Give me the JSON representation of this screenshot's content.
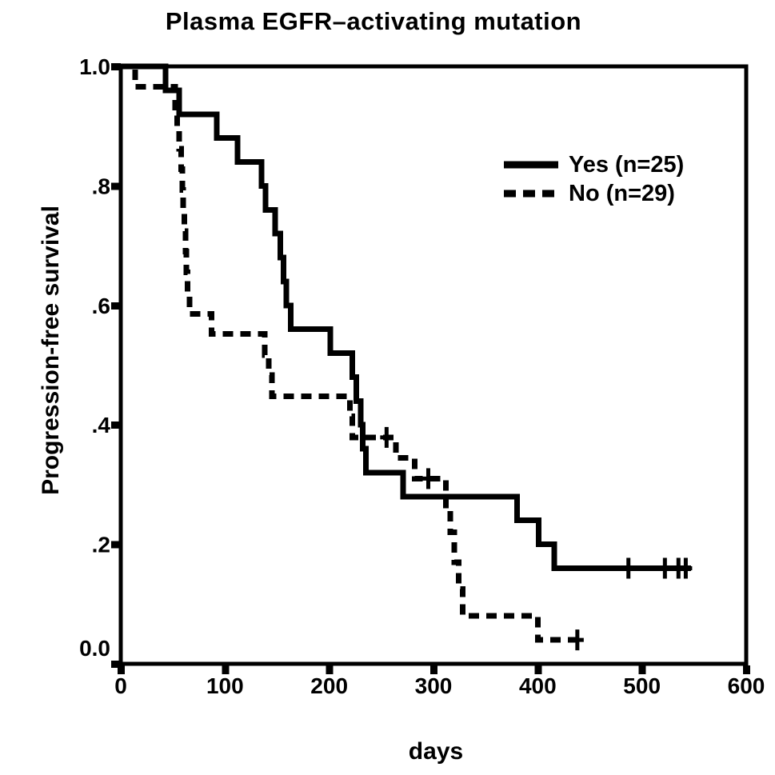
{
  "page": {
    "background": "#ffffff",
    "foreground": "#000000"
  },
  "chart_data": {
    "type": "line",
    "subtype": "kaplan-meier-step",
    "title": "Plasma EGFR–activating mutation",
    "xlabel": "days",
    "ylabel": "Progression-free survival",
    "xlim": [
      0,
      600
    ],
    "ylim": [
      0.0,
      1.0
    ],
    "x_ticks": [
      0,
      100,
      200,
      300,
      400,
      500,
      600
    ],
    "y_ticks": [
      {
        "v": 0.0,
        "label": "0.0"
      },
      {
        "v": 0.2,
        "label": ".2"
      },
      {
        "v": 0.4,
        "label": ".4"
      },
      {
        "v": 0.6,
        "label": ".6"
      },
      {
        "v": 0.8,
        "label": ".8"
      },
      {
        "v": 1.0,
        "label": "1.0"
      }
    ],
    "grid": false,
    "frame": true,
    "legend_position": "upper-right",
    "colors": {
      "line": "#000000",
      "background": "#ffffff"
    },
    "series": [
      {
        "name": "Yes (n=25)",
        "group": "Plasma EGFR-activating mutation: Yes",
        "n": 25,
        "style": "solid",
        "steps": [
          [
            0,
            1.0
          ],
          [
            43,
            0.96
          ],
          [
            56,
            0.92
          ],
          [
            92,
            0.88
          ],
          [
            112,
            0.84
          ],
          [
            135,
            0.8
          ],
          [
            139,
            0.76
          ],
          [
            148,
            0.72
          ],
          [
            153,
            0.68
          ],
          [
            156,
            0.64
          ],
          [
            159,
            0.6
          ],
          [
            163,
            0.56
          ],
          [
            201,
            0.52
          ],
          [
            222,
            0.48
          ],
          [
            226,
            0.44
          ],
          [
            230,
            0.4
          ],
          [
            232,
            0.36
          ],
          [
            235,
            0.32
          ],
          [
            271,
            0.28
          ],
          [
            380,
            0.24
          ],
          [
            401,
            0.2
          ],
          [
            416,
            0.16
          ]
        ],
        "end_day": 547,
        "censors": [
          [
            487,
            0.16
          ],
          [
            522,
            0.16
          ],
          [
            535,
            0.16
          ],
          [
            542,
            0.16
          ]
        ]
      },
      {
        "name": "No (n=29)",
        "group": "Plasma EGFR-activating mutation: No",
        "n": 29,
        "style": "dashed",
        "steps": [
          [
            0,
            1.0
          ],
          [
            14,
            0.966
          ],
          [
            52,
            0.931
          ],
          [
            54,
            0.897
          ],
          [
            56,
            0.862
          ],
          [
            58,
            0.828
          ],
          [
            59,
            0.793
          ],
          [
            60,
            0.759
          ],
          [
            61,
            0.724
          ],
          [
            62,
            0.69
          ],
          [
            63,
            0.655
          ],
          [
            64,
            0.621
          ],
          [
            66,
            0.586
          ],
          [
            87,
            0.552
          ],
          [
            138,
            0.517
          ],
          [
            142,
            0.483
          ],
          [
            145,
            0.448
          ],
          [
            220,
            0.414
          ],
          [
            222,
            0.379
          ],
          [
            264,
            0.345
          ],
          [
            282,
            0.31
          ],
          [
            312,
            0.26
          ],
          [
            316,
            0.22
          ],
          [
            320,
            0.17
          ],
          [
            324,
            0.125
          ],
          [
            328,
            0.08
          ],
          [
            400,
            0.04
          ]
        ],
        "end_day": 440,
        "censors": [
          [
            255,
            0.379
          ],
          [
            295,
            0.31
          ],
          [
            438,
            0.04
          ]
        ]
      }
    ]
  }
}
